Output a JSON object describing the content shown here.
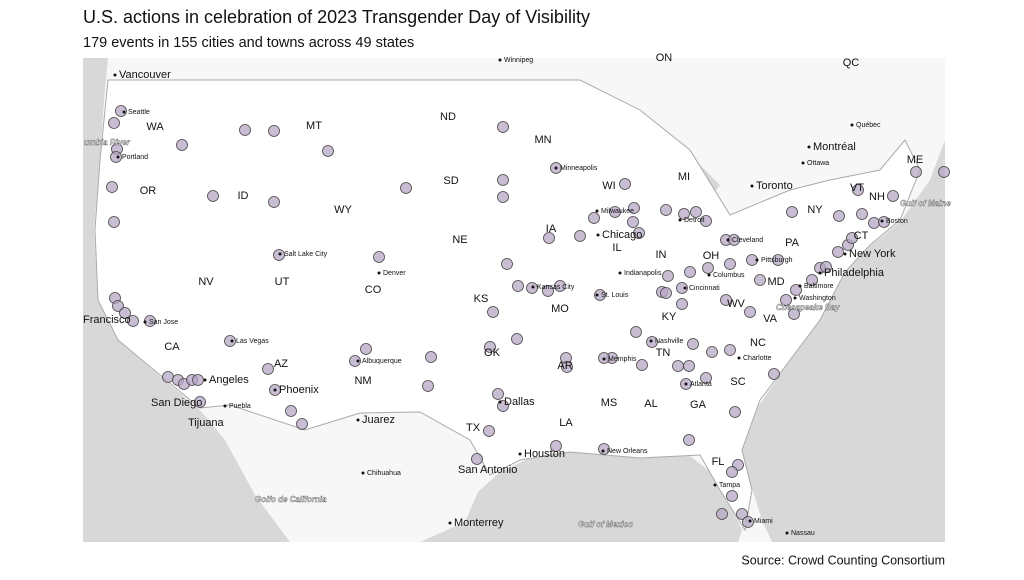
{
  "title": "U.S. actions in celebration of 2023 Transgender Day of Visibility",
  "subtitle": "179 events in 155 cities and towns across 49 states",
  "source": "Source: Crowd Counting Consortium",
  "states": [
    "WA",
    "MT",
    "ND",
    "MN",
    "OR",
    "ID",
    "SD",
    "WY",
    "WI",
    "MI",
    "NY",
    "VT",
    "NH",
    "ME",
    "IA",
    "NE",
    "CT",
    "IL",
    "IN",
    "OH",
    "PA",
    "NV",
    "UT",
    "CO",
    "KS",
    "MO",
    "MD",
    "WV",
    "KY",
    "VA",
    "CA",
    "AZ",
    "NM",
    "OK",
    "AR",
    "TN",
    "NC",
    "SC",
    "MS",
    "AL",
    "GA",
    "TX",
    "LA",
    "FL"
  ],
  "regions": [
    "ON",
    "QC"
  ],
  "cities": [
    "Vancouver",
    "Winnipeg",
    "Seattle",
    "Portland",
    "Minneapolis",
    "Québec",
    "Montréal",
    "Ottawa",
    "Toronto",
    "Boston",
    "Milwaukee",
    "Chicago",
    "Detroit",
    "Cleveland",
    "Salt Lake City",
    "Denver",
    "New York",
    "Pittsburgh",
    "Indianapolis",
    "Columbus",
    "Philadelphia",
    "Kansas City",
    "Cincinnati",
    "Baltimore",
    "St. Louis",
    "Washington",
    "Francisco",
    "San Jose",
    "Las Vegas",
    "Nashville",
    "Charlotte",
    "Albuquerque",
    "Memphis",
    "Angeles",
    "Phoenix",
    "Atlanta",
    "San Diego",
    "Puebla",
    "Dallas",
    "Tijuana",
    "Juarez",
    "Houston",
    "New Orleans",
    "San Antonio",
    "Chihuahua",
    "Tampa",
    "Monterrey",
    "Miami",
    "Nassau"
  ],
  "water": [
    "umbia River",
    "Gulf of Maine",
    "Chesapeake Bay",
    "Golfo de California",
    "Gulf of Mexico"
  ]
}
